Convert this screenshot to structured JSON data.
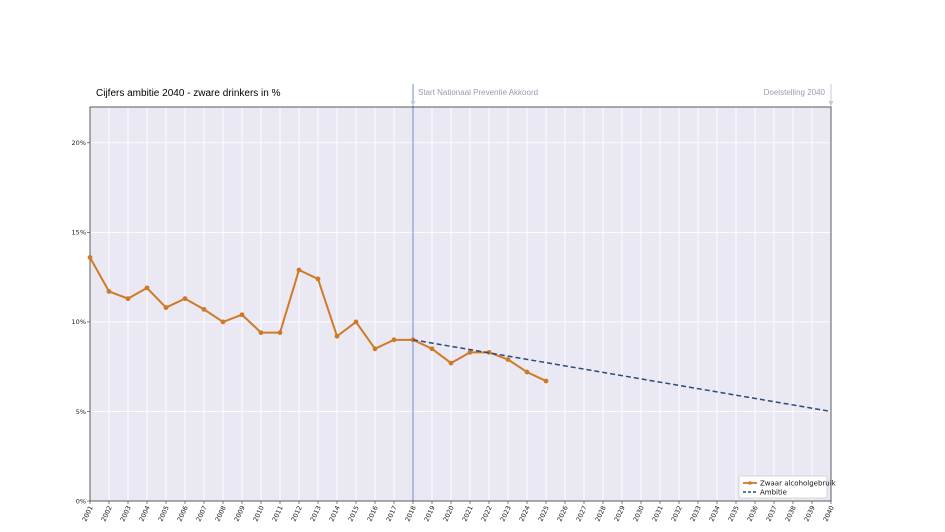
{
  "chart_data": {
    "type": "line",
    "title": "Cijfers ambitie 2040 - zware drinkers in %",
    "xlabel": "",
    "ylabel": "",
    "xlim": [
      2001,
      2040
    ],
    "ylim": [
      0,
      22
    ],
    "x_ticks": [
      "2001",
      "2002",
      "2003",
      "2004",
      "2005",
      "2006",
      "2007",
      "2008",
      "2009",
      "2010",
      "2011",
      "2012",
      "2013",
      "2014",
      "2015",
      "2016",
      "2017",
      "2018",
      "2019",
      "2020",
      "2021",
      "2022",
      "2023",
      "2024",
      "2025",
      "2026",
      "2027",
      "2028",
      "2029",
      "2030",
      "2031",
      "2032",
      "2033",
      "2034",
      "2035",
      "2036",
      "2037",
      "2038",
      "2039",
      "2040"
    ],
    "y_ticks": [
      {
        "value": 0,
        "label": "0%"
      },
      {
        "value": 5,
        "label": "5%"
      },
      {
        "value": 10,
        "label": "10%"
      },
      {
        "value": 15,
        "label": "15%"
      },
      {
        "value": 20,
        "label": "20%"
      }
    ],
    "grid": true,
    "legend_position": "bottom-right",
    "series": [
      {
        "name": "Zwaar alcoholgebruik",
        "color": "#d07a28",
        "style": "solid-markers",
        "x": [
          2001,
          2002,
          2003,
          2004,
          2005,
          2006,
          2007,
          2008,
          2009,
          2010,
          2011,
          2012,
          2013,
          2014,
          2015,
          2016,
          2017,
          2018,
          2019,
          2020,
          2021,
          2022,
          2023,
          2024,
          2025
        ],
        "values": [
          13.6,
          11.7,
          11.3,
          11.9,
          10.8,
          11.3,
          10.7,
          10.0,
          10.4,
          9.4,
          9.4,
          12.9,
          12.4,
          9.2,
          10.0,
          8.5,
          9.0,
          9.0,
          8.5,
          7.7,
          8.3,
          8.3,
          7.9,
          7.2,
          6.7
        ]
      },
      {
        "name": "Ambitie",
        "color": "#2c4a7c",
        "style": "dashed",
        "x": [
          2018,
          2040
        ],
        "values": [
          9.0,
          5.0
        ]
      }
    ],
    "annotations": [
      {
        "text": "Start Nationaal Preventie Akkoord",
        "x": 2018
      },
      {
        "text": "Doelstelling 2040",
        "x": 2040
      }
    ]
  }
}
